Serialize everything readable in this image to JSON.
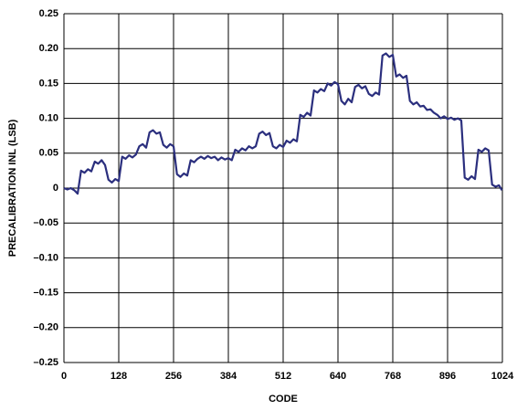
{
  "chart_data": {
    "type": "line",
    "xlabel": "CODE",
    "ylabel": "PRECALIBRATION INL (LSB)",
    "color": "#2b2f7e",
    "grid": true,
    "xlim": [
      0,
      1024
    ],
    "xticks": [
      0,
      128,
      256,
      384,
      512,
      640,
      768,
      896,
      1024
    ],
    "ylim": [
      -0.25,
      0.25
    ],
    "yticks": [
      0.25,
      {
        "value": 0.2,
        "label": "0.20"
      },
      0.15,
      {
        "value": 0.1,
        "label": "0.10"
      },
      0.05,
      0,
      {
        "value": -0.05,
        "label": "–0.05"
      },
      {
        "value": -0.1,
        "label": "–0.10"
      },
      {
        "value": -0.15,
        "label": "–0.15"
      },
      {
        "value": -0.2,
        "label": "–0.20"
      },
      {
        "value": -0.25,
        "label": "–0.25"
      }
    ],
    "x": [
      0,
      8,
      16,
      24,
      32,
      40,
      48,
      56,
      64,
      72,
      80,
      88,
      96,
      104,
      112,
      120,
      128,
      136,
      144,
      152,
      160,
      168,
      176,
      184,
      192,
      200,
      208,
      216,
      224,
      232,
      240,
      248,
      256,
      264,
      272,
      280,
      288,
      296,
      304,
      312,
      320,
      328,
      336,
      344,
      352,
      360,
      368,
      376,
      384,
      392,
      400,
      408,
      416,
      424,
      432,
      440,
      448,
      456,
      464,
      472,
      480,
      488,
      496,
      504,
      512,
      520,
      528,
      536,
      544,
      552,
      560,
      568,
      576,
      584,
      592,
      600,
      608,
      616,
      624,
      632,
      640,
      648,
      656,
      664,
      672,
      680,
      688,
      696,
      704,
      712,
      720,
      728,
      736,
      744,
      752,
      760,
      768,
      776,
      784,
      792,
      800,
      808,
      816,
      824,
      832,
      840,
      848,
      856,
      864,
      872,
      880,
      888,
      896,
      904,
      912,
      920,
      928,
      936,
      944,
      952,
      960,
      968,
      976,
      984,
      992,
      1000,
      1008,
      1016,
      1023
    ],
    "values": [
      0,
      -0.002,
      0,
      -0.003,
      -0.008,
      0.025,
      0.022,
      0.027,
      0.024,
      0.038,
      0.035,
      0.04,
      0.033,
      0.012,
      0.008,
      0.013,
      0.01,
      0.045,
      0.042,
      0.047,
      0.044,
      0.048,
      0.06,
      0.063,
      0.058,
      0.08,
      0.083,
      0.078,
      0.08,
      0.062,
      0.058,
      0.063,
      0.06,
      0.02,
      0.016,
      0.021,
      0.018,
      0.04,
      0.037,
      0.042,
      0.045,
      0.042,
      0.046,
      0.043,
      0.045,
      0.04,
      0.044,
      0.041,
      0.043,
      0.04,
      0.055,
      0.052,
      0.057,
      0.054,
      0.06,
      0.057,
      0.06,
      0.078,
      0.081,
      0.076,
      0.079,
      0.06,
      0.057,
      0.062,
      0.059,
      0.068,
      0.065,
      0.07,
      0.067,
      0.105,
      0.102,
      0.108,
      0.104,
      0.14,
      0.137,
      0.142,
      0.139,
      0.15,
      0.147,
      0.152,
      0.149,
      0.125,
      0.12,
      0.128,
      0.123,
      0.145,
      0.148,
      0.143,
      0.146,
      0.135,
      0.132,
      0.137,
      0.134,
      0.19,
      0.193,
      0.188,
      0.191,
      0.16,
      0.163,
      0.158,
      0.161,
      0.125,
      0.12,
      0.123,
      0.117,
      0.118,
      0.112,
      0.113,
      0.108,
      0.105,
      0.1,
      0.103,
      0.099,
      0.101,
      0.098,
      0.1,
      0.097,
      0.015,
      0.012,
      0.017,
      0.013,
      0.055,
      0.052,
      0.057,
      0.054,
      0.005,
      0.002,
      0.004,
      -0.003
    ]
  }
}
